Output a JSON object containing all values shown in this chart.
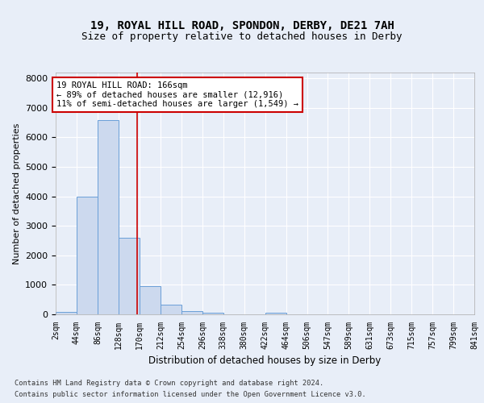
{
  "title1": "19, ROYAL HILL ROAD, SPONDON, DERBY, DE21 7AH",
  "title2": "Size of property relative to detached houses in Derby",
  "xlabel": "Distribution of detached houses by size in Derby",
  "ylabel": "Number of detached properties",
  "footer1": "Contains HM Land Registry data © Crown copyright and database right 2024.",
  "footer2": "Contains public sector information licensed under the Open Government Licence v3.0.",
  "annotation_title": "19 ROYAL HILL ROAD: 166sqm",
  "annotation_line1": "← 89% of detached houses are smaller (12,916)",
  "annotation_line2": "11% of semi-detached houses are larger (1,549) →",
  "bar_color": "#ccd9ee",
  "bar_edge_color": "#6a9fd8",
  "property_size": 166,
  "vline_color": "#cc0000",
  "bins": [
    2,
    44,
    86,
    128,
    170,
    212,
    254,
    296,
    338,
    380,
    422,
    464,
    506,
    547,
    589,
    631,
    673,
    715,
    757,
    799,
    841
  ],
  "bar_heights": [
    75,
    4000,
    6600,
    2600,
    950,
    330,
    110,
    65,
    0,
    0,
    65,
    0,
    0,
    0,
    0,
    0,
    0,
    0,
    0,
    0
  ],
  "ylim": [
    0,
    8200
  ],
  "yticks": [
    0,
    1000,
    2000,
    3000,
    4000,
    5000,
    6000,
    7000,
    8000
  ],
  "bg_color": "#e8eef8",
  "plot_bg_color": "#e8eef8",
  "grid_color": "#ffffff",
  "title1_fontsize": 10,
  "title2_fontsize": 9
}
